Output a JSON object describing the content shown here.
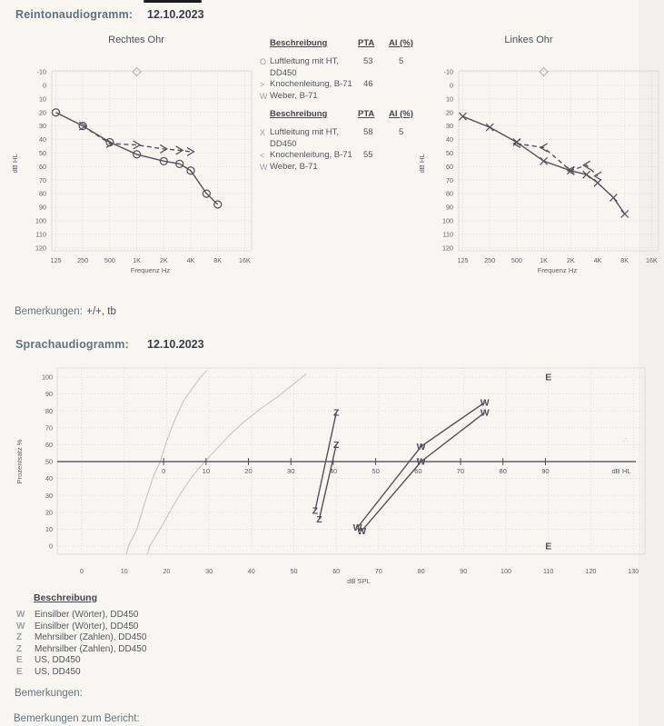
{
  "page": {
    "reinton_heading": "Reintonaudiogramm:",
    "reinton_date": "12.10.2023",
    "sprach_heading": "Sprachaudiogramm:",
    "sprach_date": "12.10.2023",
    "bemerkungen_label": "Bemerkungen:",
    "bemerkungen_value": "+/+, tb",
    "bemerkungen2_label": "Bemerkungen:",
    "bemerkungen_bericht_label": "Bemerkungen zum Bericht:"
  },
  "tables": {
    "right": {
      "header": {
        "desc": "Beschreibung",
        "pta": "PTA",
        "ai": "AI (%)"
      },
      "rows": [
        {
          "symbol": "O",
          "desc1": "Luftleitung mit HT,",
          "desc2": "DD450",
          "pta": "53",
          "ai": "5"
        },
        {
          "symbol": ">",
          "desc1": "Knochenleitung, B-71",
          "desc2": "",
          "pta": "46",
          "ai": ""
        },
        {
          "symbol": "W",
          "desc1": "Weber, B-71",
          "desc2": "",
          "pta": "",
          "ai": ""
        }
      ]
    },
    "left": {
      "header": {
        "desc": "Beschreibung",
        "pta": "PTA",
        "ai": "AI (%)"
      },
      "rows": [
        {
          "symbol": "X",
          "desc1": "Luftleitung mit HT,",
          "desc2": "DD450",
          "pta": "58",
          "ai": "5"
        },
        {
          "symbol": "<",
          "desc1": "Knochenleitung, B-71",
          "desc2": "",
          "pta": "55",
          "ai": ""
        },
        {
          "symbol": "W",
          "desc1": "Weber, B-71",
          "desc2": "",
          "pta": "",
          "ai": ""
        }
      ]
    }
  },
  "legend": {
    "title": "Beschreibung",
    "items": [
      {
        "symbol": "W",
        "label": "Einsilber (Wörter), DD450"
      },
      {
        "symbol": "W",
        "label": "Einsilber (Wörter), DD450"
      },
      {
        "symbol": "Z",
        "label": "Mehrsilber (Zahlen), DD450"
      },
      {
        "symbol": "Z",
        "label": "Mehrsilber (Zahlen), DD450"
      },
      {
        "symbol": "E",
        "label": "US, DD450"
      },
      {
        "symbol": "E",
        "label": "US, DD450"
      }
    ]
  },
  "chart_data": [
    {
      "type": "line",
      "title": "Rechtes Ohr",
      "xlabel": "Frequenz Hz",
      "ylabel": "dB HL",
      "x_ticks": [
        "125",
        "250",
        "500",
        "1K",
        "2K",
        "4K",
        "8K",
        "16K"
      ],
      "x_tick_hz": [
        125,
        250,
        500,
        1000,
        2000,
        4000,
        8000,
        16000
      ],
      "ylim": [
        -10,
        120
      ],
      "y_step": 10,
      "y_inverted": true,
      "series": [
        {
          "name": "Luftleitung mit HT, DD450",
          "symbol": "circle",
          "line": "solid",
          "points": [
            [
              125,
              20
            ],
            [
              250,
              30
            ],
            [
              500,
              42
            ],
            [
              1000,
              51
            ],
            [
              2000,
              56
            ],
            [
              3000,
              58
            ],
            [
              4000,
              63
            ],
            [
              6000,
              80
            ],
            [
              8000,
              88
            ]
          ]
        },
        {
          "name": "Knochenleitung, B-71",
          "symbol": "gt",
          "line": "dashed",
          "points": [
            [
              250,
              30
            ],
            [
              500,
              43
            ],
            [
              1000,
              44
            ],
            [
              2000,
              47
            ],
            [
              3000,
              48
            ],
            [
              4000,
              49
            ]
          ]
        },
        {
          "name": "Marker",
          "symbol": "diamond",
          "line": "none",
          "points": [
            [
              1000,
              -10
            ]
          ]
        }
      ]
    },
    {
      "type": "line",
      "title": "Linkes Ohr",
      "xlabel": "Frequenz Hz",
      "ylabel": "dB HL",
      "x_ticks": [
        "125",
        "250",
        "500",
        "1K",
        "2K",
        "4K",
        "8K",
        "16K"
      ],
      "x_tick_hz": [
        125,
        250,
        500,
        1000,
        2000,
        4000,
        8000,
        16000
      ],
      "ylim": [
        -10,
        120
      ],
      "y_step": 10,
      "y_inverted": true,
      "series": [
        {
          "name": "Luftleitung mit HT, DD450",
          "symbol": "x",
          "line": "solid",
          "points": [
            [
              125,
              23
            ],
            [
              250,
              31
            ],
            [
              500,
              42
            ],
            [
              1000,
              56
            ],
            [
              2000,
              63
            ],
            [
              3000,
              66
            ],
            [
              4000,
              72
            ],
            [
              6000,
              83
            ],
            [
              8000,
              95
            ]
          ]
        },
        {
          "name": "Knochenleitung, B-71",
          "symbol": "lt",
          "line": "dashed",
          "points": [
            [
              500,
              43
            ],
            [
              1000,
              46
            ],
            [
              2000,
              63
            ],
            [
              3000,
              59
            ],
            [
              4000,
              67
            ]
          ]
        },
        {
          "name": "Marker",
          "symbol": "diamond",
          "line": "none",
          "points": [
            [
              1000,
              -10
            ]
          ]
        }
      ]
    },
    {
      "type": "line",
      "title": "Sprachaudiogramm",
      "xlabel": "dB SPL",
      "x2label": "dB HL",
      "ylabel": "Prozentsatz %",
      "xlim": [
        0,
        130
      ],
      "x_step": 10,
      "ylim": [
        0,
        100
      ],
      "y_step": 10,
      "hl_offset": 19.3,
      "hl_tick_range": [
        0,
        90
      ],
      "reference_curves": [
        {
          "name": "Normkurve Zahlen",
          "points": [
            [
              10.5,
              -5
            ],
            [
              11,
              0
            ],
            [
              13,
              10
            ],
            [
              15,
              27
            ],
            [
              17,
              42
            ],
            [
              18.5,
              50
            ],
            [
              20,
              62
            ],
            [
              22,
              75
            ],
            [
              24,
              86
            ],
            [
              26,
              93
            ],
            [
              28,
              100
            ],
            [
              29.5,
              104
            ]
          ]
        },
        {
          "name": "Normkurve Einsilber",
          "points": [
            [
              15.5,
              -5
            ],
            [
              16,
              0
            ],
            [
              18,
              8
            ],
            [
              20,
              17
            ],
            [
              23,
              30
            ],
            [
              26,
              41
            ],
            [
              29,
              50
            ],
            [
              32,
              58
            ],
            [
              35,
              66
            ],
            [
              38,
              73
            ],
            [
              42,
              81
            ],
            [
              46,
              88
            ],
            [
              50,
              96
            ],
            [
              53,
              102
            ]
          ]
        }
      ],
      "series": [
        {
          "name": "Einsilber (Wörter), DD450",
          "symbol": "W",
          "line": "solid",
          "points": [
            [
              65,
              11
            ],
            [
              80,
              59
            ],
            [
              95,
              85
            ]
          ]
        },
        {
          "name": "Einsilber (Wörter), DD450",
          "symbol": "W",
          "line": "solid",
          "points": [
            [
              66,
              9
            ],
            [
              80,
              50
            ],
            [
              95,
              79
            ]
          ]
        },
        {
          "name": "Mehrsilber (Zahlen), DD450",
          "symbol": "Z",
          "line": "solid",
          "points": [
            [
              55,
              21
            ],
            [
              60,
              79
            ]
          ]
        },
        {
          "name": "Mehrsilber (Zahlen), DD450",
          "symbol": "Z",
          "line": "solid",
          "points": [
            [
              56,
              16
            ],
            [
              60,
              60
            ]
          ]
        },
        {
          "name": "US, DD450",
          "symbol": "E",
          "line": "none",
          "points": [
            [
              110,
              100
            ]
          ]
        },
        {
          "name": "US, DD450",
          "symbol": "E",
          "line": "none",
          "points": [
            [
              110,
              0
            ]
          ]
        }
      ]
    }
  ],
  "colors": {
    "heading": "#64727a",
    "curve": "#55505a",
    "reference_curve": "#c7c9c2",
    "grid": "#d6d7d1",
    "table_symbol": "#9ba1a8"
  }
}
